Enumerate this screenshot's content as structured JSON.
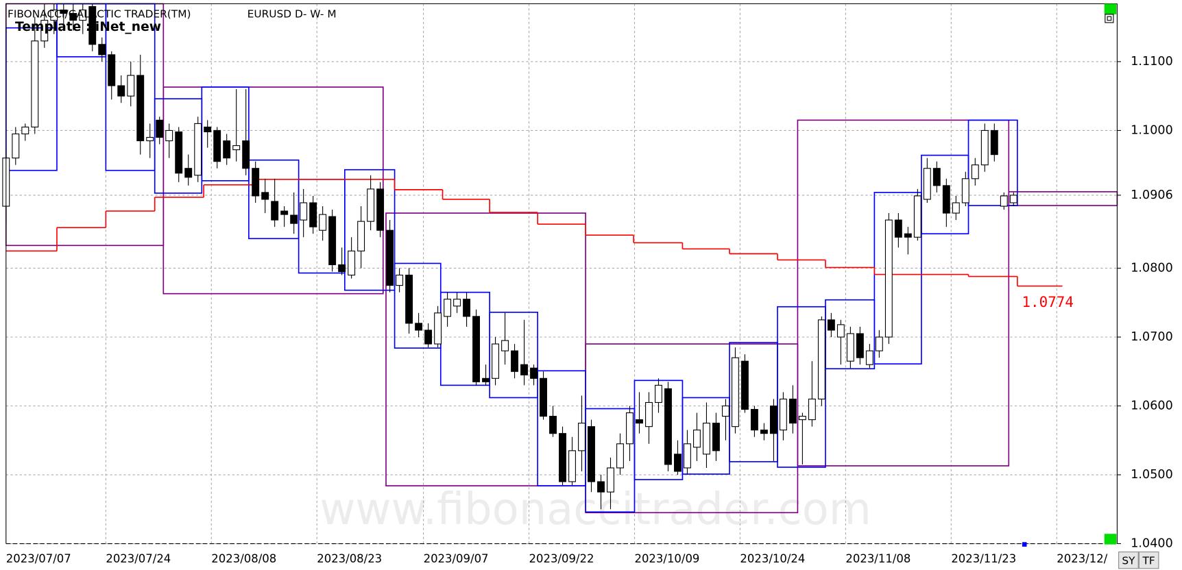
{
  "chart_data": {
    "type": "candlestick",
    "title": "FIBONACCI/GALACTIC TRADER(TM)",
    "subtitle": "EURUSD D- W- M",
    "template": "Template : iNet_new",
    "watermark": "www.fibonaccitrader.com",
    "buttons": [
      "SY",
      "TF"
    ],
    "xlim": [
      0,
      115.8
    ],
    "xticks": [
      {
        "value": 0,
        "label": "2023/07/07"
      },
      {
        "value": 10.4,
        "label": "2023/07/24"
      },
      {
        "value": 21.4,
        "label": "2023/08/08"
      },
      {
        "value": 32.4,
        "label": "2023/08/23"
      },
      {
        "value": 43.5,
        "label": "2023/09/07"
      },
      {
        "value": 54.5,
        "label": "2023/09/22"
      },
      {
        "value": 65.5,
        "label": "2023/10/09"
      },
      {
        "value": 76.5,
        "label": "2023/10/24"
      },
      {
        "value": 87.5,
        "label": "2023/11/08"
      },
      {
        "value": 98.5,
        "label": "2023/11/23"
      },
      {
        "value": 109.5,
        "label": "2023/12/"
      }
    ],
    "ylim": [
      1.04,
      1.1184
    ],
    "yticks": [
      {
        "value": 1.04,
        "label": "1.0400"
      },
      {
        "value": 1.05,
        "label": "1.0500"
      },
      {
        "value": 1.06,
        "label": "1.0600"
      },
      {
        "value": 1.07,
        "label": "1.0700"
      },
      {
        "value": 1.08,
        "label": "1.0800"
      },
      1.0906,
      {
        "value": 1.1,
        "label": "1.1000"
      },
      {
        "value": 1.11,
        "label": "1.1100"
      }
    ],
    "grid": true,
    "up_color": "#ffffff",
    "down_color": "#000000",
    "ohlc": [
      [
        1.089,
        1.0975,
        1.0865,
        1.096
      ],
      [
        1.096,
        1.1005,
        1.095,
        1.0995
      ],
      [
        1.0995,
        1.101,
        1.0985,
        1.1005
      ],
      [
        1.1005,
        1.1165,
        1.0995,
        1.113
      ],
      [
        1.113,
        1.1184,
        1.112,
        1.116
      ],
      [
        1.116,
        1.1184,
        1.114,
        1.1175
      ],
      [
        1.1175,
        1.1184,
        1.115,
        1.117
      ],
      [
        1.117,
        1.1184,
        1.1145,
        1.116
      ],
      [
        1.116,
        1.1184,
        1.114,
        1.1175
      ],
      [
        1.118,
        1.1184,
        1.1115,
        1.1125
      ],
      [
        1.1125,
        1.1135,
        1.11,
        1.111
      ],
      [
        1.111,
        1.1115,
        1.1045,
        1.1065
      ],
      [
        1.1065,
        1.108,
        1.104,
        1.105
      ],
      [
        1.105,
        1.11,
        1.1035,
        1.108
      ],
      [
        1.108,
        1.111,
        1.0965,
        1.0985
      ],
      [
        1.0985,
        1.101,
        1.096,
        1.099
      ],
      [
        1.1015,
        1.102,
        1.098,
        1.099
      ],
      [
        1.0985,
        1.101,
        1.096,
        1.1
      ],
      [
        1.0998,
        1.1005,
        1.0925,
        1.0938
      ],
      [
        1.0945,
        1.0965,
        1.092,
        1.0932
      ],
      [
        1.0935,
        1.102,
        1.0925,
        1.101
      ],
      [
        1.1005,
        1.1015,
        1.0975,
        1.0998
      ],
      [
        1.1,
        1.1005,
        1.0945,
        1.0955
      ],
      [
        1.0985,
        1.0995,
        1.095,
        1.096
      ],
      [
        1.0972,
        1.106,
        1.0955,
        1.0978
      ],
      [
        1.0985,
        1.106,
        1.0935,
        1.0945
      ],
      [
        1.0945,
        1.0955,
        1.0895,
        1.0905
      ],
      [
        1.091,
        1.093,
        1.088,
        1.09
      ],
      [
        1.0897,
        1.093,
        1.086,
        1.087
      ],
      [
        1.0883,
        1.089,
        1.086,
        1.0878
      ],
      [
        1.0877,
        1.091,
        1.085,
        1.0865
      ],
      [
        1.087,
        1.0915,
        1.0845,
        1.0895
      ],
      [
        1.0895,
        1.0905,
        1.085,
        1.086
      ],
      [
        1.0855,
        1.089,
        1.084,
        1.0878
      ],
      [
        1.0875,
        1.0885,
        1.0795,
        1.0805
      ],
      [
        1.0805,
        1.083,
        1.079,
        1.0795
      ],
      [
        1.079,
        1.0845,
        1.0785,
        1.0825
      ],
      [
        1.0825,
        1.089,
        1.08,
        1.0868
      ],
      [
        1.0868,
        1.0935,
        1.0855,
        1.0915
      ],
      [
        1.0915,
        1.0925,
        1.0845,
        1.0855
      ],
      [
        1.0855,
        1.087,
        1.0765,
        1.0775
      ],
      [
        1.0775,
        1.08,
        1.0765,
        1.079
      ],
      [
        1.079,
        1.08,
        1.0705,
        1.072
      ],
      [
        1.072,
        1.0735,
        1.07,
        1.071
      ],
      [
        1.071,
        1.072,
        1.0685,
        1.069
      ],
      [
        1.069,
        1.0745,
        1.0685,
        1.0735
      ],
      [
        1.073,
        1.0765,
        1.0715,
        1.0755
      ],
      [
        1.0745,
        1.0765,
        1.0735,
        1.0755
      ],
      [
        1.0755,
        1.0765,
        1.0715,
        1.073
      ],
      [
        1.073,
        1.074,
        1.063,
        1.0635
      ],
      [
        1.064,
        1.066,
        1.063,
        1.0635
      ],
      [
        1.064,
        1.07,
        1.063,
        1.069
      ],
      [
        1.068,
        1.0735,
        1.066,
        1.0695
      ],
      [
        1.068,
        1.069,
        1.064,
        1.065
      ],
      [
        1.066,
        1.0725,
        1.063,
        1.0645
      ],
      [
        1.0655,
        1.066,
        1.063,
        1.064
      ],
      [
        1.064,
        1.065,
        1.058,
        1.0585
      ],
      [
        1.0585,
        1.06,
        1.0555,
        1.056
      ],
      [
        1.056,
        1.057,
        1.0485,
        1.049
      ],
      [
        1.049,
        1.0555,
        1.0485,
        1.0535
      ],
      [
        1.0535,
        1.0615,
        1.0505,
        1.0575
      ],
      [
        1.057,
        1.058,
        1.0475,
        1.049
      ],
      [
        1.049,
        1.05,
        1.045,
        1.0475
      ],
      [
        1.0475,
        1.0525,
        1.045,
        1.051
      ],
      [
        1.051,
        1.056,
        1.05,
        1.0545
      ],
      [
        1.0545,
        1.06,
        1.052,
        1.059
      ],
      [
        1.058,
        1.062,
        1.056,
        1.0575
      ],
      [
        1.057,
        1.062,
        1.0545,
        1.0605
      ],
      [
        1.0605,
        1.064,
        1.059,
        1.063
      ],
      [
        1.0625,
        1.0635,
        1.0505,
        1.0515
      ],
      [
        1.053,
        1.055,
        1.05,
        1.0505
      ],
      [
        1.051,
        1.0565,
        1.05,
        1.0545
      ],
      [
        1.054,
        1.059,
        1.052,
        1.0565
      ],
      [
        1.053,
        1.0605,
        1.051,
        1.0575
      ],
      [
        1.0575,
        1.059,
        1.052,
        1.0535
      ],
      [
        1.0585,
        1.061,
        1.055,
        1.06
      ],
      [
        1.057,
        1.0685,
        1.056,
        1.067
      ],
      [
        1.0665,
        1.0675,
        1.059,
        1.0595
      ],
      [
        1.0595,
        1.06,
        1.0555,
        1.0565
      ],
      [
        1.0565,
        1.0575,
        1.055,
        1.056
      ],
      [
        1.06,
        1.061,
        1.052,
        1.056
      ],
      [
        1.0565,
        1.062,
        1.055,
        1.061
      ],
      [
        1.061,
        1.063,
        1.056,
        1.0575
      ],
      [
        1.058,
        1.059,
        1.0515,
        1.0585
      ],
      [
        1.058,
        1.0665,
        1.057,
        1.061
      ],
      [
        1.061,
        1.073,
        1.06,
        1.0725
      ],
      [
        1.0725,
        1.0735,
        1.07,
        1.071
      ],
      [
        1.07,
        1.0725,
        1.066,
        1.0718
      ],
      [
        1.0665,
        1.0715,
        1.0655,
        1.0705
      ],
      [
        1.0705,
        1.0715,
        1.066,
        1.067
      ],
      [
        1.066,
        1.069,
        1.0655,
        1.068
      ],
      [
        1.068,
        1.071,
        1.067,
        1.07
      ],
      [
        1.07,
        1.088,
        1.069,
        1.087
      ],
      [
        1.087,
        1.088,
        1.083,
        1.0845
      ],
      [
        1.085,
        1.086,
        1.082,
        1.0845
      ],
      [
        1.0845,
        1.0915,
        1.084,
        1.0905
      ],
      [
        1.09,
        1.096,
        1.0895,
        1.0945
      ],
      [
        1.0945,
        1.0955,
        1.091,
        1.092
      ],
      [
        1.092,
        1.093,
        1.086,
        1.088
      ],
      [
        1.088,
        1.0905,
        1.087,
        1.0895
      ],
      [
        1.0895,
        1.094,
        1.089,
        1.093
      ],
      [
        1.093,
        1.096,
        1.092,
        1.095
      ],
      [
        1.095,
        1.101,
        1.094,
        1.1
      ],
      [
        1.1,
        1.101,
        1.0955,
        1.0965
      ],
      [
        1.089,
        1.091,
        1.0885,
        1.0905
      ],
      [
        1.0895,
        1.091,
        1.089,
        1.0906
      ]
    ],
    "moving_average": {
      "color": "#ff0000",
      "bounds": [
        0,
        5.3,
        10.4,
        15.5,
        20.6,
        25.7,
        40.5,
        45.5,
        50.4,
        55.4,
        60.4,
        65.4,
        70.5,
        75.4,
        80.4,
        85.4,
        90.5,
        100.3,
        105.4,
        110.1
      ],
      "values": [
        1.0825,
        1.0859,
        1.0883,
        1.0903,
        1.0921,
        1.0929,
        1.0914,
        1.09,
        1.0881,
        1.0864,
        1.0848,
        1.0837,
        1.0828,
        1.0821,
        1.0812,
        1.0801,
        1.0791,
        1.0788,
        1.0774
      ]
    },
    "blue_boxes": {
      "color": "#0000ff",
      "boxes": [
        [
          0,
          5.3,
          1.1149,
          1.0942
        ],
        [
          5.3,
          10.4,
          1.1184,
          1.1107
        ],
        [
          10.4,
          15.5,
          1.1184,
          1.0942
        ],
        [
          15.5,
          20.4,
          1.1046,
          1.0909
        ],
        [
          20.4,
          25.3,
          1.1063,
          1.0927
        ],
        [
          25.3,
          30.5,
          1.0957,
          1.0843
        ],
        [
          30.5,
          35.3,
          1.0929,
          1.0793
        ],
        [
          35.3,
          40.5,
          1.0943,
          1.0768
        ],
        [
          40.5,
          45.3,
          1.0807,
          1.0684
        ],
        [
          45.3,
          50.4,
          1.0765,
          1.063
        ],
        [
          50.4,
          55.4,
          1.0736,
          1.0612
        ],
        [
          55.4,
          60.4,
          1.0651,
          1.0484
        ],
        [
          60.4,
          65.5,
          1.0596,
          1.0446
        ],
        [
          65.5,
          70.5,
          1.0637,
          1.0493
        ],
        [
          70.5,
          75.4,
          1.0612,
          1.0501
        ],
        [
          75.4,
          80.4,
          1.0692,
          1.0519
        ],
        [
          80.4,
          85.4,
          1.0744,
          1.0511
        ],
        [
          85.4,
          90.5,
          1.0754,
          1.0654
        ],
        [
          90.5,
          95.4,
          1.091,
          1.0661
        ],
        [
          95.4,
          100.3,
          1.0964,
          1.085
        ],
        [
          100.3,
          105.4,
          1.1015,
          1.0891
        ]
      ]
    },
    "purple_boxes": {
      "color": "#800080",
      "boxes": [
        [
          0,
          16.4,
          1.1184,
          1.0833
        ],
        [
          16.4,
          39.3,
          1.1063,
          1.0763
        ],
        [
          39.6,
          60.4,
          1.088,
          1.0484
        ],
        [
          60.4,
          82.5,
          1.069,
          1.0445
        ],
        [
          82.5,
          104.5,
          1.1015,
          1.0513
        ],
        [
          104.5,
          115.8,
          1.0911,
          1.0891
        ]
      ]
    }
  }
}
